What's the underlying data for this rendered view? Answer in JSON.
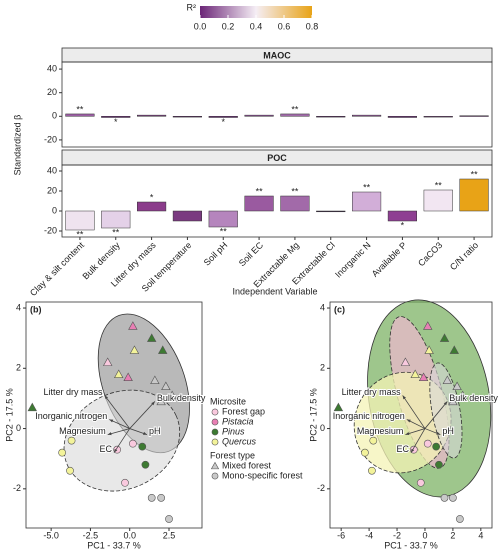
{
  "chart_data": [
    {
      "type": "bar",
      "categories": [
        "Clay & silt content",
        "Bulk density",
        "Litter dry mass",
        "Soil temperature",
        "Soil pH",
        "Soil EC",
        "Extractable Mg",
        "Extractable Cl",
        "Inorganic N",
        "Available P",
        "CaCO3",
        "C/N ratio"
      ],
      "ylabel": "Standardized β",
      "xlabel": "Independent Variable",
      "ylim": [
        -26,
        46
      ],
      "yticks": [
        -20,
        0,
        20,
        40
      ],
      "facets": [
        {
          "title": "MAOC",
          "values": [
            2,
            -1,
            1,
            0,
            -1,
            1,
            2,
            0,
            1,
            -1,
            0,
            0.5
          ],
          "colors": [
            "#9b5ea3",
            "#6b2577",
            "#7a3a80",
            "#5e1f6b",
            "#6b2577",
            "#8b4a92",
            "#a06aa8",
            "#5e1f6b",
            "#8e4f96",
            "#6b2577",
            "#7a3a80",
            "#7a3a80"
          ],
          "significance": [
            "**",
            "*",
            null,
            null,
            "*",
            null,
            "**",
            null,
            null,
            null,
            null,
            null
          ]
        },
        {
          "title": "POC",
          "values": [
            -19,
            -17,
            9,
            -10,
            -16,
            15,
            15,
            0,
            19,
            -10,
            21,
            32
          ],
          "colors": [
            "#efe3ef",
            "#e4d1e8",
            "#8b3c8b",
            "#7a3a80",
            "#b585bd",
            "#9a5aa0",
            "#a26aa9",
            "#3a1a4a",
            "#d2aed8",
            "#8e3f92",
            "#f2e6f2",
            "#e8a317"
          ],
          "significance": [
            "**",
            "**",
            "*",
            null,
            "**",
            "**",
            "**",
            null,
            "**",
            "*",
            "**",
            "**"
          ]
        }
      ],
      "colorbar": {
        "title": "R²",
        "lim": [
          0,
          0.8
        ],
        "ticks": [
          {
            "value": 0,
            "label": "0.0"
          },
          0.2,
          0.4,
          0.6,
          0.8
        ],
        "colors": [
          "#6b2577",
          "#f5eef5",
          "#e8a317"
        ]
      }
    },
    {
      "type": "scatter",
      "panel": "(b)",
      "xlabel": "PC1 - 33.7 %",
      "ylabel": "PC2 - 17.5 %",
      "xlim": [
        -6.6,
        4.6
      ],
      "ylim": [
        -3.3,
        4.2
      ],
      "xticks": [
        {
          "value": -5,
          "label": "-5.0"
        },
        -2.5,
        {
          "value": 0,
          "label": "0.0"
        },
        2.5
      ],
      "yticks": [
        -2,
        0,
        2,
        4
      ],
      "ellipses": [
        {
          "cx": 0.9,
          "cy": 1.5,
          "rx": 2.6,
          "ry": 2.4,
          "angle": -20,
          "fill": "#8a8a8a",
          "opacity": 0.6,
          "dash": false
        },
        {
          "cx": -0.5,
          "cy": -0.4,
          "rx": 3.8,
          "ry": 1.6,
          "angle": -25,
          "fill": "#d9d9d9",
          "opacity": 0.6,
          "dash": true
        }
      ],
      "series": [
        {
          "name": "Forest gap",
          "color": "#f9c9de",
          "italic": false,
          "x": [
            -1.4,
            -0.8,
            0.2,
            -0.3
          ],
          "y": [
            2.2,
            -0.7,
            -0.5,
            -1.8
          ],
          "markers": [
            "triangle",
            "circle",
            "circle",
            "circle"
          ]
        },
        {
          "name": "Pistacia",
          "color": "#e87fb4",
          "italic": true,
          "x": [
            0.2,
            -0.1
          ],
          "y": [
            3.4,
            1.7
          ],
          "markers": [
            "triangle",
            "triangle"
          ]
        },
        {
          "name": "Pinus",
          "color": "#3d7a32",
          "italic": true,
          "x": [
            1.4,
            2.1,
            -6.2,
            0.8,
            1.0
          ],
          "y": [
            3.0,
            2.6,
            0.7,
            -0.6,
            -1.2
          ],
          "markers": [
            "triangle",
            "triangle",
            "triangle",
            "circle",
            "circle"
          ]
        },
        {
          "name": "Quercus",
          "color": "#f3f39a",
          "italic": true,
          "x": [
            0.3,
            -0.7,
            -3.7,
            -4.3,
            -3.8
          ],
          "y": [
            2.6,
            1.8,
            -0.4,
            -0.8,
            -1.4
          ],
          "markers": [
            "triangle",
            "triangle",
            "circle",
            "circle",
            "circle"
          ]
        },
        {
          "color": "#c9c9c9",
          "x": [
            1.6,
            2.3,
            2.7,
            2.0,
            1.4,
            2.0,
            2.5
          ],
          "y": [
            1.6,
            1.4,
            1.1,
            0.9,
            -2.3,
            -2.3,
            -3.0
          ],
          "markers": [
            "triangle",
            "triangle",
            "triangle",
            "triangle",
            "circle",
            "circle",
            "circle"
          ]
        }
      ],
      "vectors": [
        {
          "label": "Litter dry mass",
          "x": -1.6,
          "y": 1.1
        },
        {
          "label": "Bulk density",
          "x": 1.6,
          "y": 0.9
        },
        {
          "label": "Inorganic nitrogen",
          "x": -1.3,
          "y": 0.3
        },
        {
          "label": "Magnesium",
          "x": -1.4,
          "y": -0.2
        },
        {
          "label": "pH",
          "x": 1.1,
          "y": -0.2
        },
        {
          "label": "EC",
          "x": -1.0,
          "y": -0.8
        }
      ],
      "legend": {
        "title": "Microsite",
        "shape_title": "Forest type",
        "shapes": [
          {
            "name": "Mixed forest",
            "marker": "triangle"
          },
          {
            "name": "Mono-specific forest",
            "marker": "circle"
          }
        ]
      }
    },
    {
      "type": "scatter",
      "panel": "(c)",
      "xlabel": "PC1 - 33.7 %",
      "ylabel": "PC2 - 17.5 %",
      "xlim": [
        -6.8,
        4.8
      ],
      "ylim": [
        -3.3,
        4.2
      ],
      "xticks": [
        -6,
        -4,
        -2,
        0,
        2,
        4
      ],
      "yticks": [
        -2,
        0,
        2,
        4
      ],
      "ellipses": [
        {
          "cx": 0.3,
          "cy": 1.0,
          "rx": 4.3,
          "ry": 3.3,
          "angle": -10,
          "fill": "#6aa84f",
          "opacity": 0.65,
          "dash": false
        },
        {
          "cx": -0.4,
          "cy": 1.2,
          "rx": 1.6,
          "ry": 2.6,
          "angle": -15,
          "fill": "#f0b8cf",
          "opacity": 0.7,
          "dash": true
        },
        {
          "cx": -1.6,
          "cy": 0.2,
          "rx": 3.4,
          "ry": 1.7,
          "angle": 30,
          "fill": "#f4f3b5",
          "opacity": 0.75,
          "dash": true
        },
        {
          "cx": 1.5,
          "cy": 0.6,
          "rx": 1.0,
          "ry": 1.6,
          "angle": -10,
          "fill": "#d9d9d9",
          "opacity": 0.6,
          "dash": true
        }
      ],
      "series": [
        {
          "name": "Forest gap",
          "color": "#f9c9de",
          "x": [
            -1.4,
            -0.8,
            0.2,
            -0.3
          ],
          "y": [
            2.2,
            -0.7,
            -0.5,
            -1.8
          ],
          "markers": [
            "triangle",
            "circle",
            "circle",
            "circle"
          ]
        },
        {
          "name": "Pistacia",
          "color": "#e87fb4",
          "x": [
            0.2,
            -0.1
          ],
          "y": [
            3.4,
            1.7
          ],
          "markers": [
            "triangle",
            "triangle"
          ]
        },
        {
          "name": "Pinus",
          "color": "#3d7a32",
          "x": [
            1.4,
            2.1,
            -6.2,
            0.8,
            1.0
          ],
          "y": [
            3.0,
            2.6,
            0.7,
            -0.6,
            -1.2
          ],
          "markers": [
            "triangle",
            "triangle",
            "triangle",
            "circle",
            "circle"
          ]
        },
        {
          "name": "Quercus",
          "color": "#f3f39a",
          "x": [
            0.3,
            -0.7,
            -3.7,
            -4.3,
            -3.8
          ],
          "y": [
            2.6,
            1.8,
            -0.4,
            -0.8,
            -1.4
          ],
          "markers": [
            "triangle",
            "triangle",
            "circle",
            "circle",
            "circle"
          ]
        },
        {
          "color": "#c9c9c9",
          "x": [
            1.6,
            2.3,
            2.7,
            2.0,
            1.4,
            2.0,
            2.5
          ],
          "y": [
            1.6,
            1.4,
            1.1,
            0.9,
            -2.3,
            -2.3,
            -3.0
          ],
          "markers": [
            "triangle",
            "triangle",
            "triangle",
            "triangle",
            "circle",
            "circle",
            "circle"
          ]
        }
      ],
      "vectors": [
        {
          "label": "Litter dry mass",
          "x": -1.6,
          "y": 1.1
        },
        {
          "label": "Bulk density",
          "x": 1.6,
          "y": 0.9
        },
        {
          "label": "Inorganic nitrogen",
          "x": -1.3,
          "y": 0.3
        },
        {
          "label": "Magnesium",
          "x": -1.4,
          "y": -0.2
        },
        {
          "label": "pH",
          "x": 1.1,
          "y": -0.2
        },
        {
          "label": "EC",
          "x": -1.0,
          "y": -0.8
        }
      ]
    }
  ]
}
